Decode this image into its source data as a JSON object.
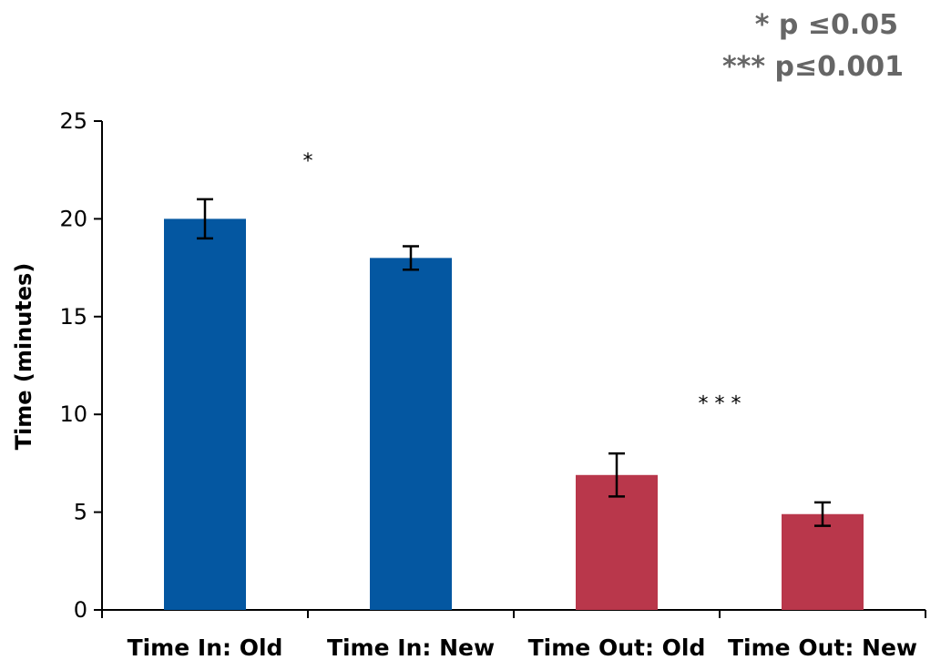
{
  "significance_legend": [
    "* p ≤0.05",
    "*** p≤0.001"
  ],
  "chart_data": {
    "type": "bar",
    "title": "",
    "xlabel": "",
    "ylabel": "Time (minutes)",
    "ylim": [
      0,
      25
    ],
    "yticks": [
      0,
      5,
      10,
      15,
      20,
      25
    ],
    "grid": false,
    "categories": [
      "Time In: Old",
      "Time In: New",
      "Time Out: Old",
      "Time Out: New"
    ],
    "values": [
      20,
      18,
      6.9,
      4.9
    ],
    "errors": [
      1.0,
      0.6,
      1.1,
      0.6
    ],
    "colors": [
      "#0457a1",
      "#0457a1",
      "#b9374b",
      "#b9374b"
    ],
    "annotations": [
      {
        "text": "*",
        "x_between": [
          0,
          1
        ],
        "y": 23
      },
      {
        "text": "* * *",
        "x_between": [
          2,
          3
        ],
        "y": 10.6
      }
    ]
  }
}
